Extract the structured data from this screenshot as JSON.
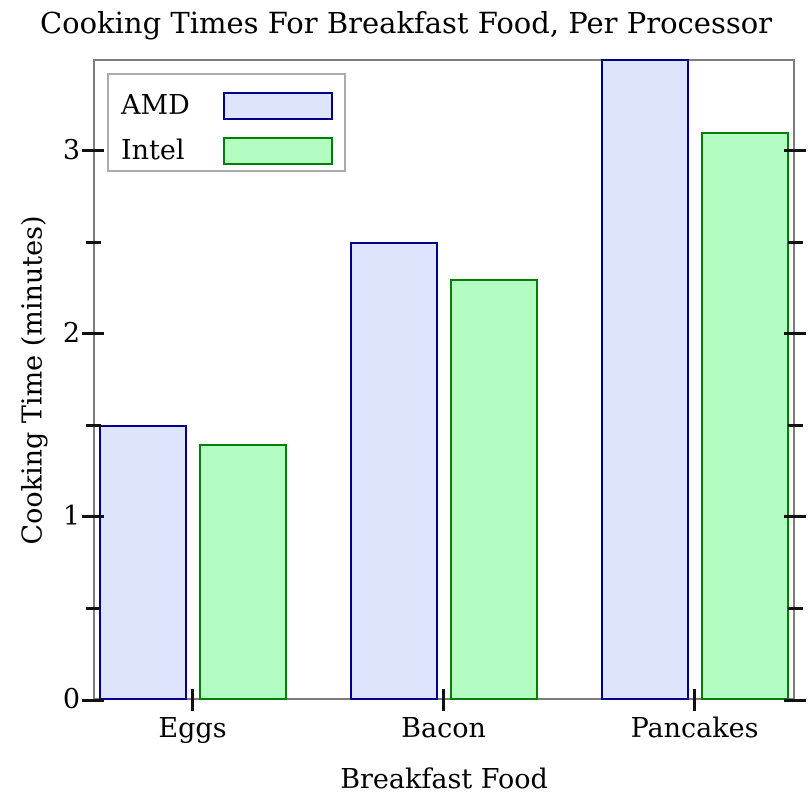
{
  "chart_data": {
    "type": "bar",
    "title": "Cooking Times For Breakfast Food, Per Processor",
    "xlabel": "Breakfast Food",
    "ylabel": "Cooking Time (minutes)",
    "categories": [
      "Eggs",
      "Bacon",
      "Pancakes"
    ],
    "series": [
      {
        "name": "AMD",
        "values": [
          1.5,
          2.5,
          3.5
        ],
        "fill": "#dee4fb",
        "stroke": "#00008b"
      },
      {
        "name": "Intel",
        "values": [
          1.4,
          2.3,
          3.1
        ],
        "fill": "#b4fdc2",
        "stroke": "#008000"
      }
    ],
    "ylim": [
      0,
      3.5
    ],
    "yticks_major": [
      0,
      1,
      2,
      3
    ],
    "yticks_minor": [
      0.5,
      1.5,
      2.5
    ],
    "legend_position": "top-left",
    "grid": false
  },
  "colors": {
    "axis_border": "#7d7d7d",
    "tick": "#111111",
    "legend_border": "#ababab",
    "background": "#ffffff",
    "text": "#000000"
  }
}
